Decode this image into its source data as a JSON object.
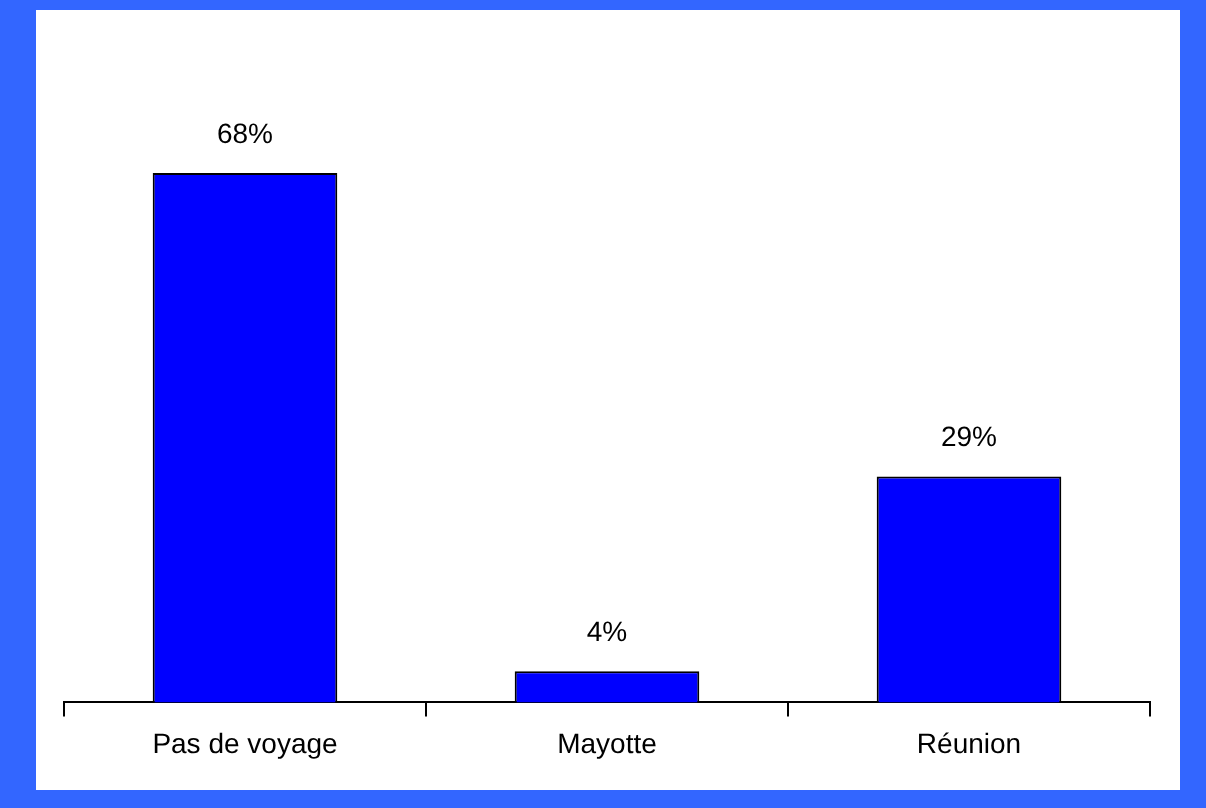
{
  "chart_data": {
    "type": "bar",
    "categories": [
      "Pas de voyage",
      "Mayotte",
      "Réunion"
    ],
    "series": [
      {
        "color": "#0000ff",
        "values": [
          68,
          4,
          29
        ],
        "value_labels": [
          "68%",
          "4%",
          "29%"
        ]
      }
    ],
    "grid": false,
    "legend": false
  }
}
